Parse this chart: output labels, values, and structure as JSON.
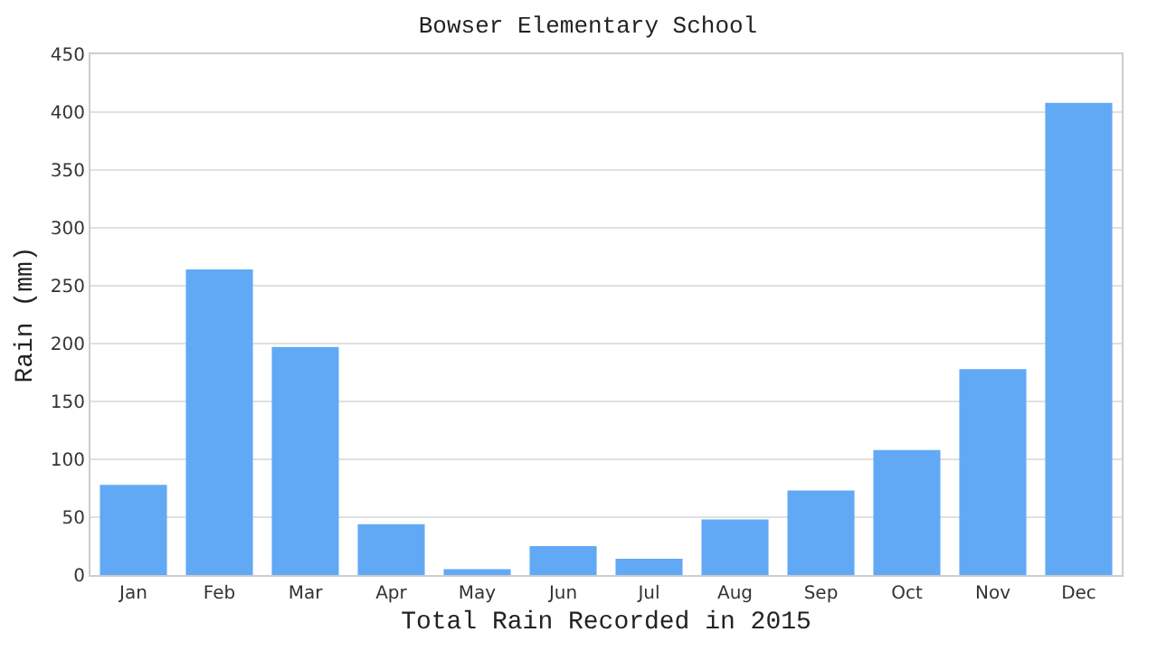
{
  "chart_data": {
    "type": "bar",
    "title": "Bowser Elementary School",
    "xlabel": "Total Rain Recorded in 2015",
    "ylabel": "Rain (mm)",
    "categories": [
      "Jan",
      "Feb",
      "Mar",
      "Apr",
      "May",
      "Jun",
      "Jul",
      "Aug",
      "Sep",
      "Oct",
      "Nov",
      "Dec"
    ],
    "values": [
      78,
      264,
      197,
      44,
      5,
      25,
      14,
      48,
      73,
      108,
      178,
      408
    ],
    "color": "#62a9f5",
    "ylim": [
      0,
      450
    ],
    "yticks": [
      0,
      50,
      100,
      150,
      200,
      250,
      300,
      350,
      400,
      450
    ],
    "grid": "y"
  }
}
